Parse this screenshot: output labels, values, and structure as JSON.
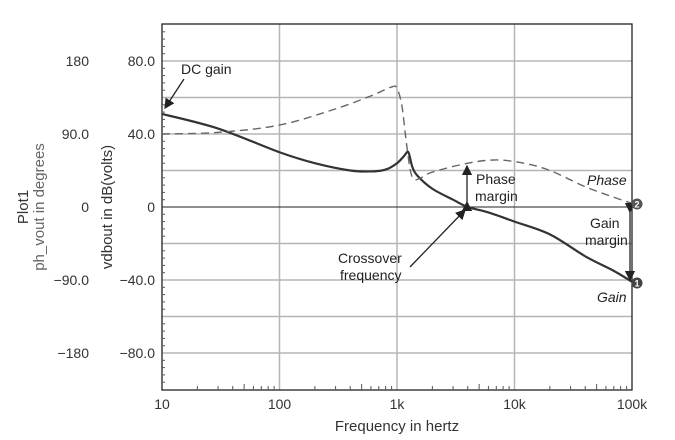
{
  "chart_data": {
    "type": "line",
    "title": "Plot1",
    "xlabel": "Frequency in hertz",
    "ylabel_left_outer": "ph_vout in degrees",
    "ylabel_left_inner": "vdbout in dB(volts)",
    "xscale": "log",
    "xlim": [
      10,
      100000
    ],
    "x_ticks": [
      {
        "v": 10,
        "label": "10"
      },
      {
        "v": 100,
        "label": "100"
      },
      {
        "v": 1000,
        "label": "1k"
      },
      {
        "v": 10000,
        "label": "10k"
      },
      {
        "v": 100000,
        "label": "100k"
      }
    ],
    "ylim_db": [
      -100,
      100
    ],
    "y_ticks_db": [
      {
        "v": 80,
        "label": "80.0"
      },
      {
        "v": 40,
        "label": "40.0"
      },
      {
        "v": 0,
        "label": "0"
      },
      {
        "v": -40,
        "label": "−40.0"
      },
      {
        "v": -80,
        "label": "−80.0"
      }
    ],
    "y_ticks_deg": [
      {
        "v": 180,
        "label": "180"
      },
      {
        "v": 90,
        "label": "90.0"
      },
      {
        "v": 0,
        "label": "0"
      },
      {
        "v": -90,
        "label": "−90.0"
      },
      {
        "v": -180,
        "label": "−180"
      }
    ],
    "grid": true,
    "series": [
      {
        "name": "Gain",
        "unit": "dB",
        "style": "solid",
        "x": [
          10,
          30,
          100,
          200,
          400,
          600,
          800,
          1000,
          1150,
          1250,
          1350,
          1500,
          2000,
          3000,
          4000,
          6000,
          10000,
          20000,
          40000,
          70000,
          100000
        ],
        "y": [
          51,
          43,
          30,
          24,
          20,
          19.5,
          20.5,
          24,
          28,
          30,
          22,
          17,
          10,
          4,
          0,
          -3,
          -8,
          -15,
          -27,
          -35,
          -41
        ]
      },
      {
        "name": "Phase",
        "unit": "degrees",
        "style": "dashed",
        "x": [
          10,
          30,
          100,
          300,
          600,
          900,
          1000,
          1100,
          1200,
          1300,
          1400,
          1600,
          2000,
          4000,
          7000,
          12000,
          20000,
          40000,
          70000,
          100000
        ],
        "y": [
          90,
          92,
          101,
          121,
          137,
          148,
          146,
          125,
          80,
          45,
          34,
          36,
          43,
          54,
          58,
          54,
          45,
          25,
          12,
          4.5
        ]
      }
    ],
    "annotations": {
      "dc_gain": "DC gain",
      "phase_margin": [
        "Phase",
        "margin"
      ],
      "crossover": [
        "Crossover",
        "frequency"
      ],
      "gain_margin": [
        "Gain",
        "margin"
      ],
      "phase_label": "Phase",
      "gain_label": "Gain",
      "marker1": "1",
      "marker2": "2"
    }
  },
  "colors": {
    "grid": "#b5b5b5",
    "gain": "#333333",
    "phase": "#666666",
    "axis_label_gray": "#666666"
  }
}
